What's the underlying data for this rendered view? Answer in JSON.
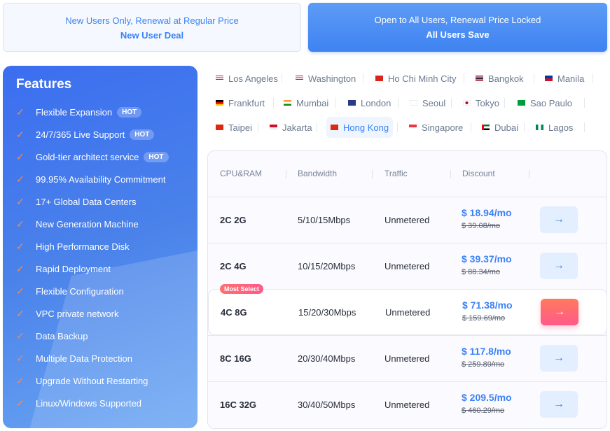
{
  "tabs": [
    {
      "subtitle": "New Users Only, Renewal at Regular Price",
      "title": "New User Deal"
    },
    {
      "subtitle": "Open to All Users, Renewal Price Locked",
      "title": "All Users Save"
    }
  ],
  "features": {
    "title": "Features",
    "items": [
      {
        "label": "Flexible Expansion",
        "badge": "HOT"
      },
      {
        "label": "24/7/365 Live Support",
        "badge": "HOT"
      },
      {
        "label": "Gold-tier architect service",
        "badge": "HOT"
      },
      {
        "label": "99.95% Availability Commitment"
      },
      {
        "label": "17+ Global Data Centers"
      },
      {
        "label": "New Generation Machine"
      },
      {
        "label": "High Performance Disk"
      },
      {
        "label": "Rapid Deployment"
      },
      {
        "label": "Flexible Configuration"
      },
      {
        "label": "VPC private network"
      },
      {
        "label": "Data Backup"
      },
      {
        "label": "Multiple Data Protection"
      },
      {
        "label": "Upgrade Without Restarting"
      },
      {
        "label": "Linux/Windows Supported"
      }
    ]
  },
  "locations": {
    "selected": "Hong Kong",
    "rows": [
      [
        {
          "name": "Los Angeles",
          "flag": "us"
        },
        {
          "name": "Washington",
          "flag": "us"
        },
        {
          "name": "Ho Chi Minh City",
          "flag": "vn"
        },
        {
          "name": "Bangkok",
          "flag": "th"
        },
        {
          "name": "Manila",
          "flag": "ph"
        }
      ],
      [
        {
          "name": "Frankfurt",
          "flag": "de"
        },
        {
          "name": "Mumbai",
          "flag": "in"
        },
        {
          "name": "London",
          "flag": "gb"
        },
        {
          "name": "Seoul",
          "flag": "kr"
        },
        {
          "name": "Tokyo",
          "flag": "jp"
        },
        {
          "name": "Sao Paulo",
          "flag": "br"
        }
      ],
      [
        {
          "name": "Taipei",
          "flag": "cn"
        },
        {
          "name": "Jakarta",
          "flag": "id"
        },
        {
          "name": "Hong Kong",
          "flag": "hk"
        },
        {
          "name": "Singapore",
          "flag": "sg"
        },
        {
          "name": "Dubai",
          "flag": "ae"
        },
        {
          "name": "Lagos",
          "flag": "ng"
        }
      ]
    ]
  },
  "table": {
    "headers": [
      "CPU&RAM",
      "Bandwidth",
      "Traffic",
      "Discount"
    ],
    "rows": [
      {
        "cpu": "2C 2G",
        "bandwidth": "5/10/15Mbps",
        "traffic": "Unmetered",
        "price": "$ 18.94/mo",
        "old": "$ 39.08/mo"
      },
      {
        "cpu": "2C 4G",
        "bandwidth": "10/15/20Mbps",
        "traffic": "Unmetered",
        "price": "$ 39.37/mo",
        "old": "$ 88.34/mo"
      },
      {
        "cpu": "4C 8G",
        "bandwidth": "15/20/30Mbps",
        "traffic": "Unmetered",
        "price": "$ 71.38/mo",
        "old": "$ 159.69/mo",
        "badge": "Most Select"
      },
      {
        "cpu": "8C 16G",
        "bandwidth": "20/30/40Mbps",
        "traffic": "Unmetered",
        "price": "$ 117.8/mo",
        "old": "$ 259.89/mo"
      },
      {
        "cpu": "16C 32G",
        "bandwidth": "30/40/50Mbps",
        "traffic": "Unmetered",
        "price": "$ 209.5/mo",
        "old": "$ 460.29/mo"
      }
    ]
  },
  "colors": {
    "accent": "#3b82f6",
    "hot": "#ff6680",
    "check": "#f08a5d"
  }
}
